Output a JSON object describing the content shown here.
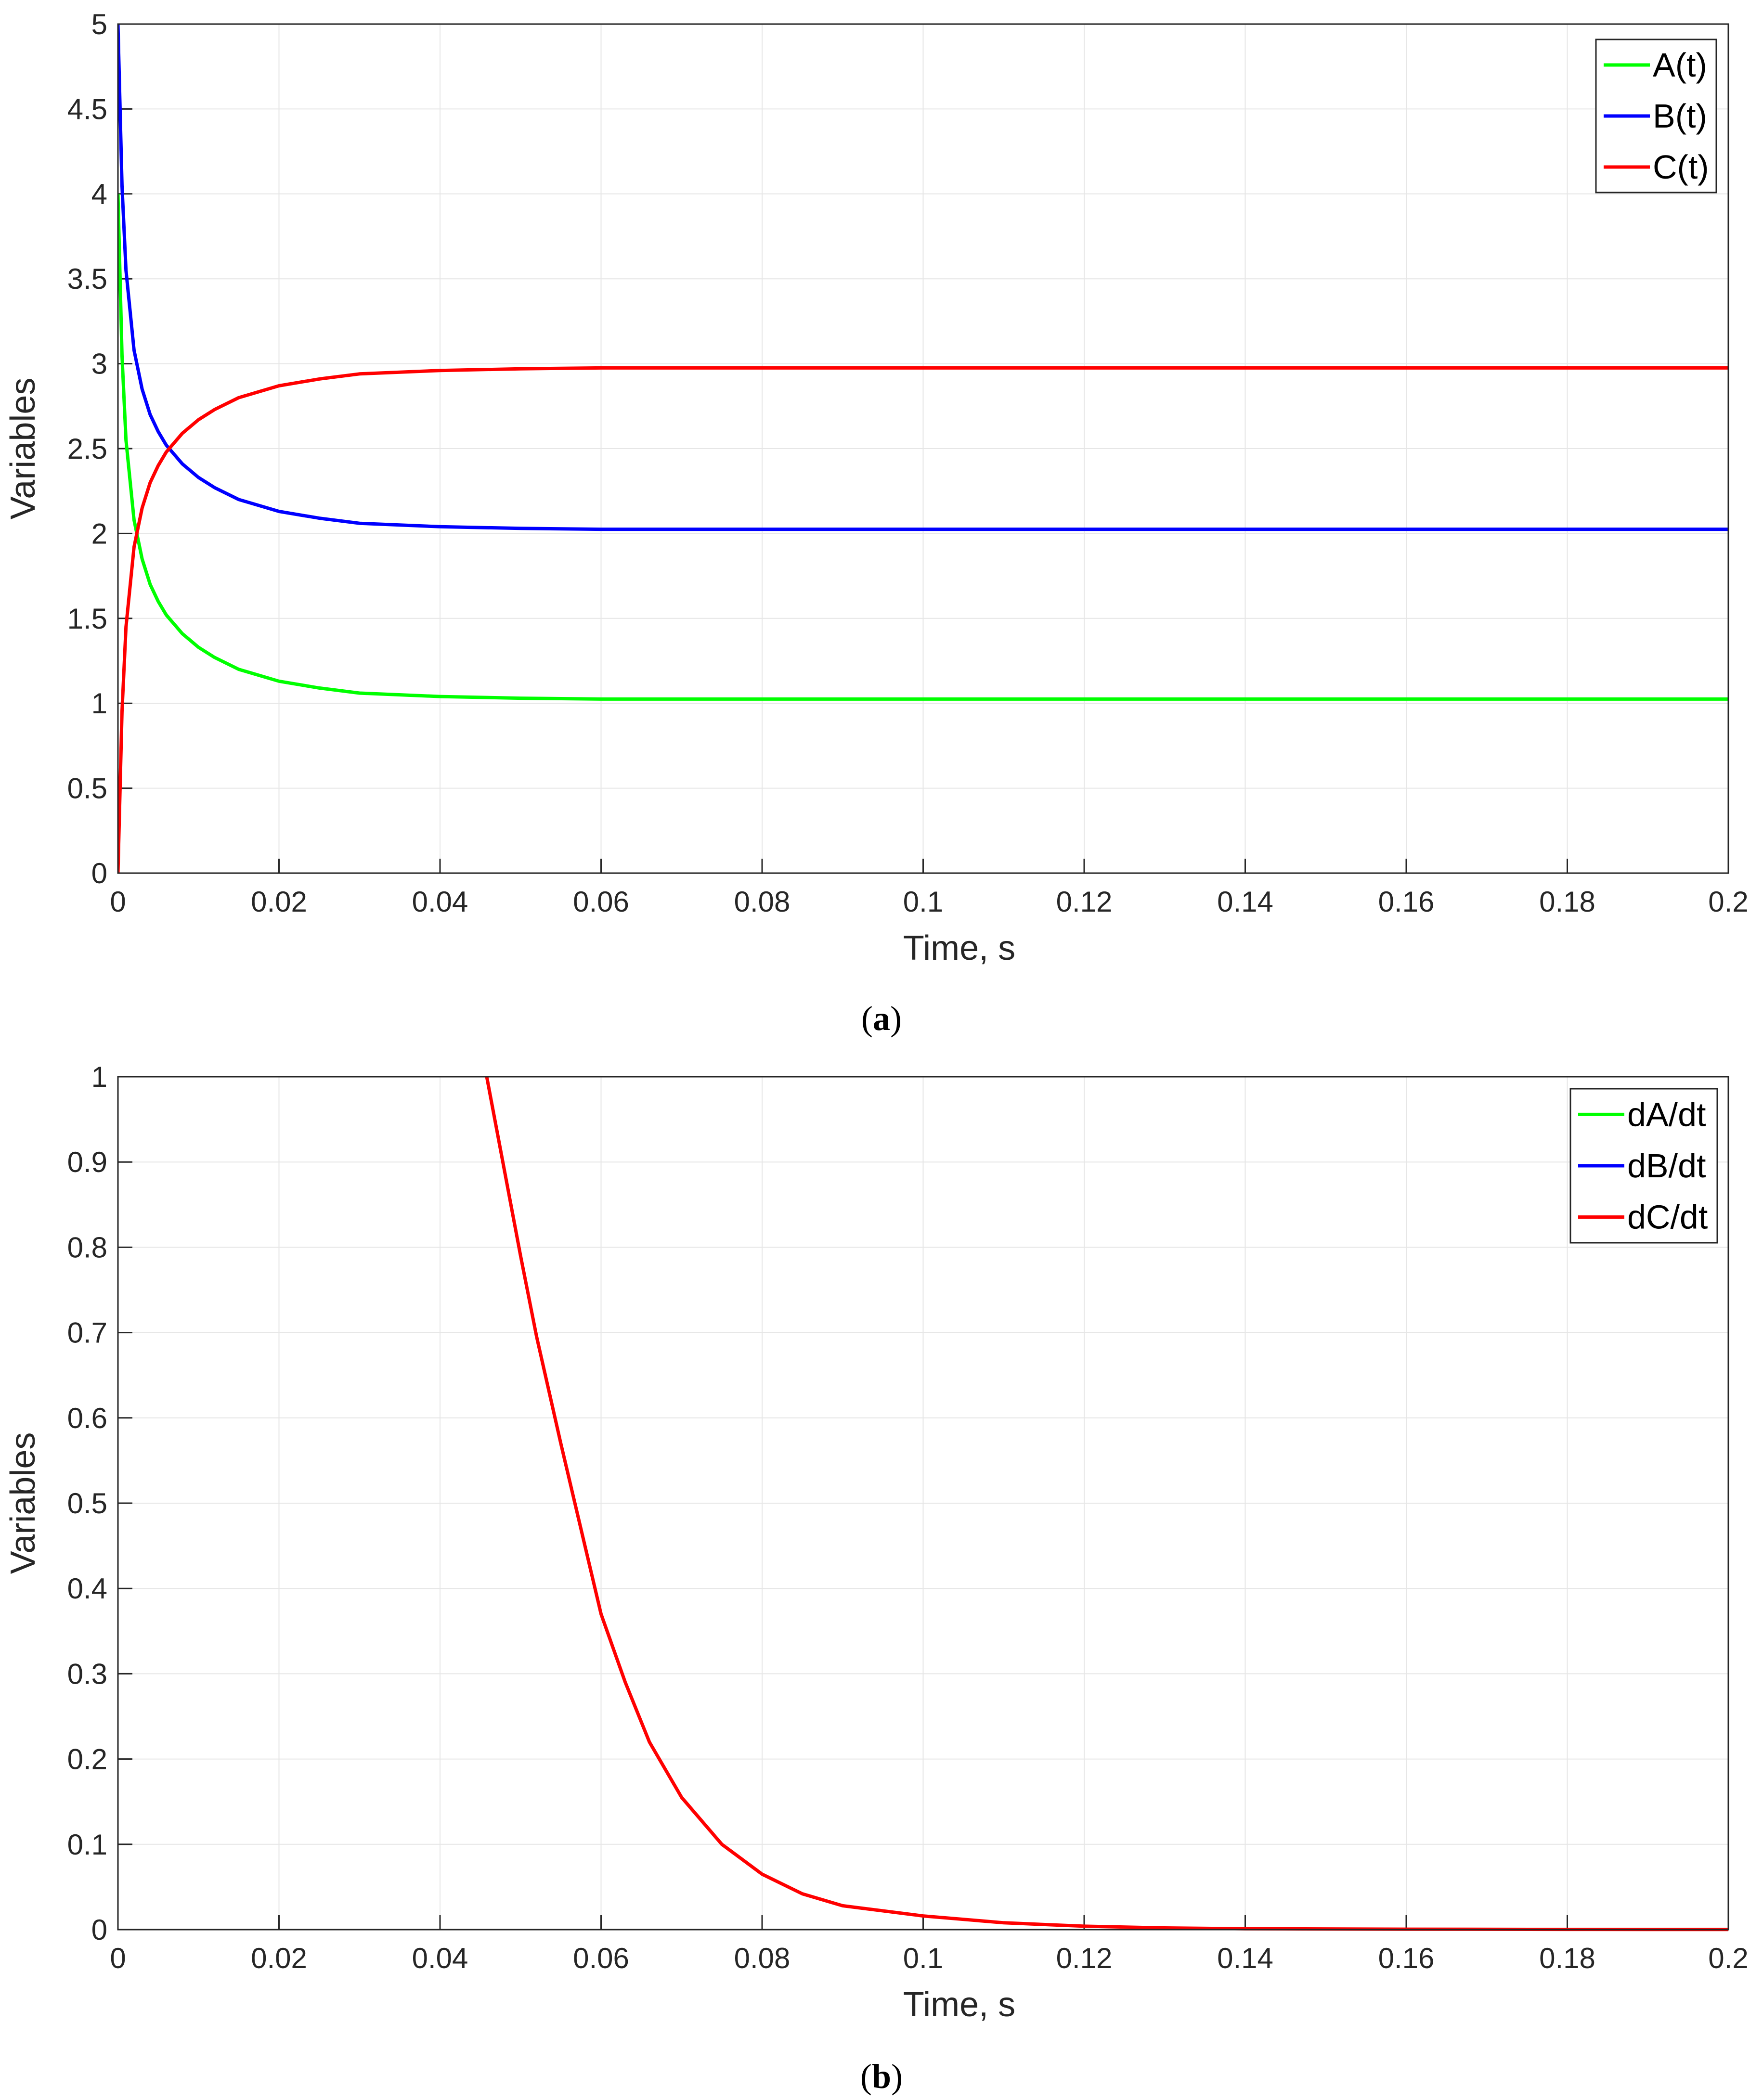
{
  "chart_data": [
    {
      "id": "a",
      "type": "line",
      "caption_letter": "a",
      "xlabel": "Time, s",
      "ylabel": "Variables",
      "xlim": [
        0,
        0.2
      ],
      "ylim": [
        0,
        5
      ],
      "xticks": [
        0,
        0.02,
        0.04,
        0.06,
        0.08,
        0.1,
        0.12,
        0.14,
        0.16,
        0.18,
        0.2
      ],
      "xtick_labels": [
        "0",
        "0.02",
        "0.04",
        "0.06",
        "0.08",
        "0.1",
        "0.12",
        "0.14",
        "0.16",
        "0.18",
        "0.2"
      ],
      "yticks": [
        0,
        0.5,
        1,
        1.5,
        2,
        2.5,
        3,
        3.5,
        4,
        4.5,
        5
      ],
      "ytick_labels": [
        "0",
        "0.5",
        "1",
        "1.5",
        "2",
        "2.5",
        "3",
        "3.5",
        "4",
        "4.5",
        "5"
      ],
      "grid": true,
      "legend_position": "top-right",
      "series": [
        {
          "name": "A(t)",
          "color": "#00ff00",
          "x": [
            0,
            0.0005,
            0.001,
            0.002,
            0.003,
            0.004,
            0.005,
            0.006,
            0.008,
            0.01,
            0.012,
            0.015,
            0.02,
            0.025,
            0.03,
            0.04,
            0.05,
            0.06,
            0.08,
            0.1,
            0.12,
            0.14,
            0.16,
            0.18,
            0.2
          ],
          "y": [
            4.0,
            3.05,
            2.55,
            2.08,
            1.85,
            1.7,
            1.6,
            1.52,
            1.41,
            1.33,
            1.27,
            1.2,
            1.13,
            1.09,
            1.06,
            1.04,
            1.03,
            1.025,
            1.025,
            1.025,
            1.025,
            1.025,
            1.025,
            1.025,
            1.025
          ]
        },
        {
          "name": "B(t)",
          "color": "#0000ff",
          "x": [
            0,
            0.0005,
            0.001,
            0.002,
            0.003,
            0.004,
            0.005,
            0.006,
            0.008,
            0.01,
            0.012,
            0.015,
            0.02,
            0.025,
            0.03,
            0.04,
            0.05,
            0.06,
            0.08,
            0.1,
            0.12,
            0.14,
            0.16,
            0.18,
            0.2
          ],
          "y": [
            5.0,
            4.05,
            3.55,
            3.08,
            2.85,
            2.7,
            2.6,
            2.52,
            2.41,
            2.33,
            2.27,
            2.2,
            2.13,
            2.09,
            2.06,
            2.04,
            2.03,
            2.025,
            2.025,
            2.025,
            2.025,
            2.025,
            2.025,
            2.025,
            2.025
          ]
        },
        {
          "name": "C(t)",
          "color": "#ff0000",
          "x": [
            0,
            0.0005,
            0.001,
            0.002,
            0.003,
            0.004,
            0.005,
            0.006,
            0.008,
            0.01,
            0.012,
            0.015,
            0.02,
            0.025,
            0.03,
            0.04,
            0.05,
            0.06,
            0.08,
            0.1,
            0.12,
            0.14,
            0.16,
            0.18,
            0.2
          ],
          "y": [
            0.0,
            0.95,
            1.45,
            1.92,
            2.15,
            2.3,
            2.4,
            2.48,
            2.59,
            2.67,
            2.73,
            2.8,
            2.87,
            2.91,
            2.94,
            2.96,
            2.97,
            2.975,
            2.975,
            2.975,
            2.975,
            2.975,
            2.975,
            2.975,
            2.975
          ]
        }
      ]
    },
    {
      "id": "b",
      "type": "line",
      "caption_letter": "b",
      "xlabel": "Time, s",
      "ylabel": "Variables",
      "xlim": [
        0,
        0.2
      ],
      "ylim": [
        0,
        1
      ],
      "xticks": [
        0,
        0.02,
        0.04,
        0.06,
        0.08,
        0.1,
        0.12,
        0.14,
        0.16,
        0.18,
        0.2
      ],
      "xtick_labels": [
        "0",
        "0.02",
        "0.04",
        "0.06",
        "0.08",
        "0.1",
        "0.12",
        "0.14",
        "0.16",
        "0.18",
        "0.2"
      ],
      "yticks": [
        0,
        0.1,
        0.2,
        0.3,
        0.4,
        0.5,
        0.6,
        0.7,
        0.8,
        0.9,
        1
      ],
      "ytick_labels": [
        "0",
        "0.1",
        "0.2",
        "0.3",
        "0.4",
        "0.5",
        "0.6",
        "0.7",
        "0.8",
        "0.9",
        "1"
      ],
      "grid": true,
      "legend_position": "top-right",
      "series": [
        {
          "name": "dA/dt",
          "color": "#00ff00",
          "x": [],
          "y": []
        },
        {
          "name": "dB/dt",
          "color": "#0000ff",
          "x": [],
          "y": []
        },
        {
          "name": "dC/dt",
          "color": "#ff0000",
          "x": [
            0.0458,
            0.048,
            0.05,
            0.052,
            0.055,
            0.058,
            0.06,
            0.063,
            0.066,
            0.07,
            0.075,
            0.08,
            0.085,
            0.09,
            0.1,
            0.11,
            0.12,
            0.13,
            0.14,
            0.16,
            0.18,
            0.2
          ],
          "y": [
            1.0,
            0.89,
            0.79,
            0.695,
            0.57,
            0.45,
            0.37,
            0.29,
            0.22,
            0.155,
            0.1,
            0.065,
            0.042,
            0.028,
            0.016,
            0.008,
            0.004,
            0.002,
            0.001,
            0.0005,
            0.0002,
            0.0001
          ]
        }
      ]
    }
  ]
}
